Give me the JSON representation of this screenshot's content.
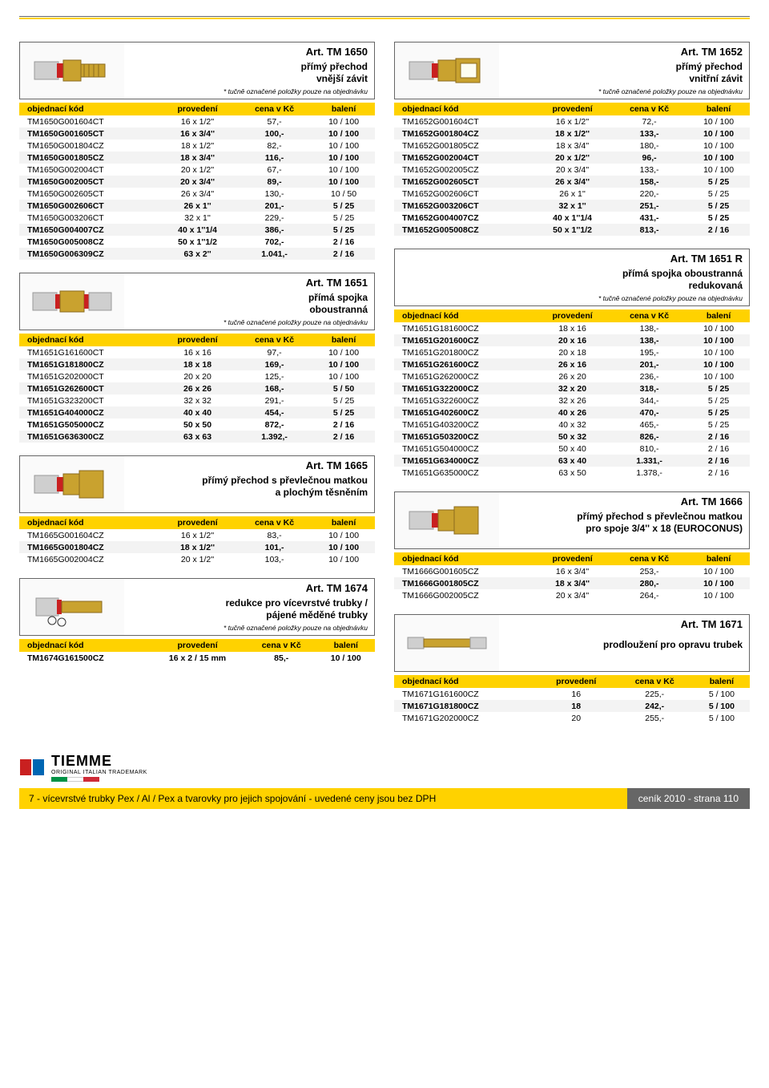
{
  "columns": {
    "code": "objednací kód",
    "spec": "provedení",
    "price": "cena v Kč",
    "pack": "balení"
  },
  "order_note": "* tučně označené položky pouze na objednávku",
  "colors": {
    "yellow": "#ffd200",
    "grey": "#666",
    "alt": "#f3f3f3",
    "red": "#c92020",
    "brass": "#c9a22f",
    "brass_dark": "#8a6a1e",
    "steel": "#cfcfcf"
  },
  "brand": {
    "name": "TIEMME",
    "sub": "ORIGINAL ITALIAN TRADEMARK"
  },
  "footer": {
    "left": "7 - vícevrstvé trubky Pex / Al / Pex a tvarovky pro jejich spojování - uvedené ceny jsou bez DPH",
    "right": "ceník 2010 - strana 110"
  },
  "sections": [
    {
      "id": "tm1650",
      "art": "Art. TM 1650",
      "desc": "přímý přechod\nvnější závit",
      "note": true,
      "col": "left",
      "fitting": "male",
      "rows": [
        {
          "c": "TM1650G001604CT",
          "s": "16 x 1/2''",
          "p": "57,-",
          "b": "10 / 100"
        },
        {
          "c": "TM1650G001605CT",
          "s": "16 x 3/4''",
          "p": "100,-",
          "b": "10 / 100",
          "bold": true
        },
        {
          "c": "TM1650G001804CZ",
          "s": "18 x 1/2''",
          "p": "82,-",
          "b": "10 / 100"
        },
        {
          "c": "TM1650G001805CZ",
          "s": "18 x 3/4''",
          "p": "116,-",
          "b": "10 / 100",
          "bold": true
        },
        {
          "c": "TM1650G002004CT",
          "s": "20 x 1/2''",
          "p": "67,-",
          "b": "10 / 100"
        },
        {
          "c": "TM1650G002005CT",
          "s": "20 x 3/4''",
          "p": "89,-",
          "b": "10 / 100",
          "bold": true
        },
        {
          "c": "TM1650G002605CT",
          "s": "26 x 3/4''",
          "p": "130,-",
          "b": "10 / 50"
        },
        {
          "c": "TM1650G002606CT",
          "s": "26 x 1''",
          "p": "201,-",
          "b": "5 / 25",
          "bold": true
        },
        {
          "c": "TM1650G003206CT",
          "s": "32 x 1''",
          "p": "229,-",
          "b": "5 / 25"
        },
        {
          "c": "TM1650G004007CZ",
          "s": "40 x 1''1/4",
          "p": "386,-",
          "b": "5 / 25",
          "bold": true
        },
        {
          "c": "TM1650G005008CZ",
          "s": "50 x 1''1/2",
          "p": "702,-",
          "b": "2 / 16",
          "bold": true
        },
        {
          "c": "TM1650G006309CZ",
          "s": "63 x 2''",
          "p": "1.041,-",
          "b": "2 / 16",
          "bold": true
        }
      ]
    },
    {
      "id": "tm1652",
      "art": "Art. TM 1652",
      "desc": "přímý přechod\nvnitřní závit",
      "note": true,
      "col": "right",
      "fitting": "female",
      "rows": [
        {
          "c": "TM1652G001604CT",
          "s": "16 x 1/2''",
          "p": "72,-",
          "b": "10 / 100"
        },
        {
          "c": "TM1652G001804CZ",
          "s": "18 x 1/2''",
          "p": "133,-",
          "b": "10 / 100",
          "bold": true
        },
        {
          "c": "TM1652G001805CZ",
          "s": "18 x 3/4''",
          "p": "180,-",
          "b": "10 / 100"
        },
        {
          "c": "TM1652G002004CT",
          "s": "20 x 1/2''",
          "p": "96,-",
          "b": "10 / 100",
          "bold": true
        },
        {
          "c": "TM1652G002005CZ",
          "s": "20 x 3/4''",
          "p": "133,-",
          "b": "10 / 100"
        },
        {
          "c": "TM1652G002605CT",
          "s": "26 x 3/4''",
          "p": "158,-",
          "b": "5 / 25",
          "bold": true
        },
        {
          "c": "TM1652G002606CT",
          "s": "26 x 1''",
          "p": "220,-",
          "b": "5 / 25"
        },
        {
          "c": "TM1652G003206CT",
          "s": "32 x 1''",
          "p": "251,-",
          "b": "5 / 25",
          "bold": true
        },
        {
          "c": "TM1652G004007CZ",
          "s": "40 x 1''1/4",
          "p": "431,-",
          "b": "5 / 25",
          "bold": true
        },
        {
          "c": "TM1652G005008CZ",
          "s": "50 x 1''1/2",
          "p": "813,-",
          "b": "2 / 16",
          "bold": true
        }
      ]
    },
    {
      "id": "tm1651",
      "art": "Art. TM 1651",
      "desc": "přímá spojka\noboustranná",
      "note": true,
      "col": "left",
      "fitting": "coupling",
      "rows": [
        {
          "c": "TM1651G161600CT",
          "s": "16 x 16",
          "p": "97,-",
          "b": "10 / 100"
        },
        {
          "c": "TM1651G181800CZ",
          "s": "18 x 18",
          "p": "169,-",
          "b": "10 / 100",
          "bold": true
        },
        {
          "c": "TM1651G202000CT",
          "s": "20 x 20",
          "p": "125,-",
          "b": "10 / 100"
        },
        {
          "c": "TM1651G262600CT",
          "s": "26 x 26",
          "p": "168,-",
          "b": "5 / 50",
          "bold": true
        },
        {
          "c": "TM1651G323200CT",
          "s": "32 x 32",
          "p": "291,-",
          "b": "5 / 25"
        },
        {
          "c": "TM1651G404000CZ",
          "s": "40 x 40",
          "p": "454,-",
          "b": "5 / 25",
          "bold": true
        },
        {
          "c": "TM1651G505000CZ",
          "s": "50 x 50",
          "p": "872,-",
          "b": "2 / 16",
          "bold": true
        },
        {
          "c": "TM1651G636300CZ",
          "s": "63 x 63",
          "p": "1.392,-",
          "b": "2 / 16",
          "bold": true
        }
      ]
    },
    {
      "id": "tm1651r",
      "art": "Art. TM 1651 R",
      "desc": "přímá spojka oboustranná\nredukovaná",
      "note": true,
      "col": "right",
      "noimg": true,
      "rows": [
        {
          "c": "TM1651G181600CZ",
          "s": "18 x 16",
          "p": "138,-",
          "b": "10 / 100"
        },
        {
          "c": "TM1651G201600CZ",
          "s": "20 x 16",
          "p": "138,-",
          "b": "10 / 100",
          "bold": true
        },
        {
          "c": "TM1651G201800CZ",
          "s": "20 x 18",
          "p": "195,-",
          "b": "10 / 100"
        },
        {
          "c": "TM1651G261600CZ",
          "s": "26 x 16",
          "p": "201,-",
          "b": "10 / 100",
          "bold": true
        },
        {
          "c": "TM1651G262000CZ",
          "s": "26 x 20",
          "p": "236,-",
          "b": "10 / 100"
        },
        {
          "c": "TM1651G322000CZ",
          "s": "32 x 20",
          "p": "318,-",
          "b": "5 / 25",
          "bold": true
        },
        {
          "c": "TM1651G322600CZ",
          "s": "32 x 26",
          "p": "344,-",
          "b": "5 / 25"
        },
        {
          "c": "TM1651G402600CZ",
          "s": "40 x 26",
          "p": "470,-",
          "b": "5 / 25",
          "bold": true
        },
        {
          "c": "TM1651G403200CZ",
          "s": "40 x 32",
          "p": "465,-",
          "b": "5 / 25"
        },
        {
          "c": "TM1651G503200CZ",
          "s": "50 x 32",
          "p": "826,-",
          "b": "2 / 16",
          "bold": true
        },
        {
          "c": "TM1651G504000CZ",
          "s": "50 x 40",
          "p": "810,-",
          "b": "2 / 16"
        },
        {
          "c": "TM1651G634000CZ",
          "s": "63 x 40",
          "p": "1.331,-",
          "b": "2 / 16",
          "bold": true
        },
        {
          "c": "TM1651G635000CZ",
          "s": "63 x 50",
          "p": "1.378,-",
          "b": "2 / 16"
        }
      ]
    },
    {
      "id": "tm1665",
      "art": "Art. TM 1665",
      "desc": "přímý přechod s převlečnou matkou\na plochým těsněním",
      "note": false,
      "col": "left",
      "fitting": "nut",
      "rows": [
        {
          "c": "TM1665G001604CZ",
          "s": "16 x 1/2''",
          "p": "83,-",
          "b": "10 / 100"
        },
        {
          "c": "TM1665G001804CZ",
          "s": "18 x 1/2''",
          "p": "101,-",
          "b": "10 / 100",
          "bold": true
        },
        {
          "c": "TM1665G002004CZ",
          "s": "20 x 1/2''",
          "p": "103,-",
          "b": "10 / 100"
        }
      ]
    },
    {
      "id": "tm1666",
      "art": "Art. TM 1666",
      "desc": "přímý přechod s převlečnou matkou\npro spoje 3/4'' x 18 (EUROCONUS)",
      "note": false,
      "col": "right",
      "fitting": "nut",
      "rows": [
        {
          "c": "TM1666G001605CZ",
          "s": "16 x 3/4''",
          "p": "253,-",
          "b": "10 / 100"
        },
        {
          "c": "TM1666G001805CZ",
          "s": "18 x 3/4''",
          "p": "280,-",
          "b": "10 / 100",
          "bold": true
        },
        {
          "c": "TM1666G002005CZ",
          "s": "20 x 3/4''",
          "p": "264,-",
          "b": "10 / 100"
        }
      ]
    },
    {
      "id": "tm1674",
      "art": "Art. TM 1674",
      "desc": "redukce pro vícevrstvé trubky /\npájené měděné trubky",
      "note": true,
      "col": "left",
      "fitting": "reducer",
      "rows": [
        {
          "c": "TM1674G161500CZ",
          "s": "16 x 2 / 15 mm",
          "p": "85,-",
          "b": "10 / 100",
          "bold": true
        }
      ]
    },
    {
      "id": "tm1671",
      "art": "Art. TM 1671",
      "desc": "prodloužení pro opravu trubek",
      "note": false,
      "col": "right",
      "fitting": "extension",
      "rows": [
        {
          "c": "TM1671G161600CZ",
          "s": "16",
          "p": "225,-",
          "b": "5 / 100"
        },
        {
          "c": "TM1671G181800CZ",
          "s": "18",
          "p": "242,-",
          "b": "5 / 100",
          "bold": true
        },
        {
          "c": "TM1671G202000CZ",
          "s": "20",
          "p": "255,-",
          "b": "5 / 100"
        }
      ]
    }
  ]
}
